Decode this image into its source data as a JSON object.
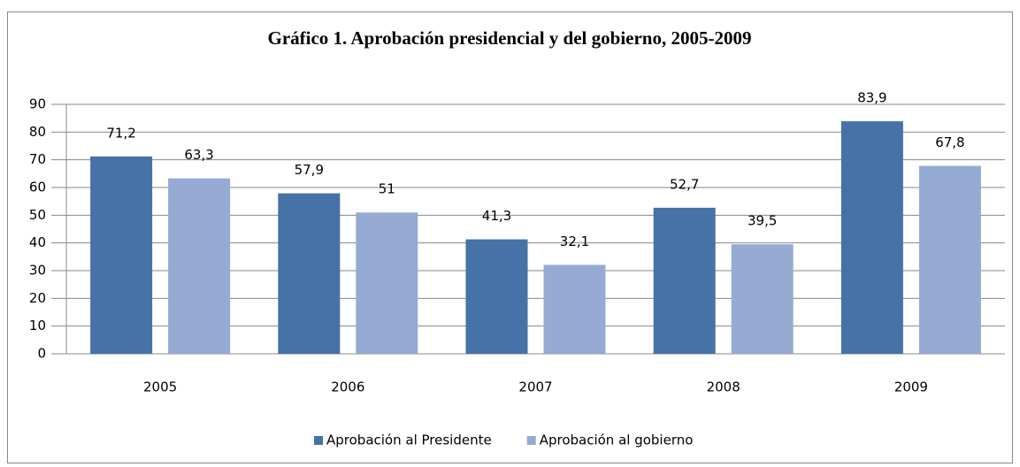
{
  "chart_data": {
    "type": "bar",
    "title": "Gráfico 1. Aprobación presidencial y del gobierno, 2005-2009",
    "categories": [
      "2005",
      "2006",
      "2007",
      "2008",
      "2009"
    ],
    "series": [
      {
        "name": "Aprobación al Presidente",
        "color": "#4572a7",
        "values": [
          71.2,
          57.9,
          41.3,
          52.7,
          83.9
        ],
        "value_labels": [
          "71,2",
          "57,9",
          "41,3",
          "52,7",
          "83,9"
        ]
      },
      {
        "name": "Aprobación al gobierno",
        "color": "#95abd3",
        "values": [
          63.3,
          51,
          32.1,
          39.5,
          67.8
        ],
        "value_labels": [
          "63,3",
          "51",
          "32,1",
          "39,5",
          "67,8"
        ]
      }
    ],
    "ylim": [
      0,
      90
    ],
    "yticks": [
      0,
      10,
      20,
      30,
      40,
      50,
      60,
      70,
      80,
      90
    ],
    "grid": true,
    "legend": "bottom"
  }
}
